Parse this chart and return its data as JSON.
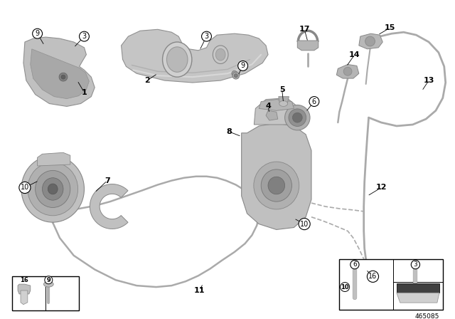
{
  "bg_color": "#ffffff",
  "diagram_id": "465085",
  "gray_part": "#b8b8b8",
  "gray_dark": "#888888",
  "gray_light": "#d0d0d0",
  "gray_mid": "#a0a0a0",
  "line_color": "#999999",
  "black": "#000000",
  "white": "#ffffff"
}
